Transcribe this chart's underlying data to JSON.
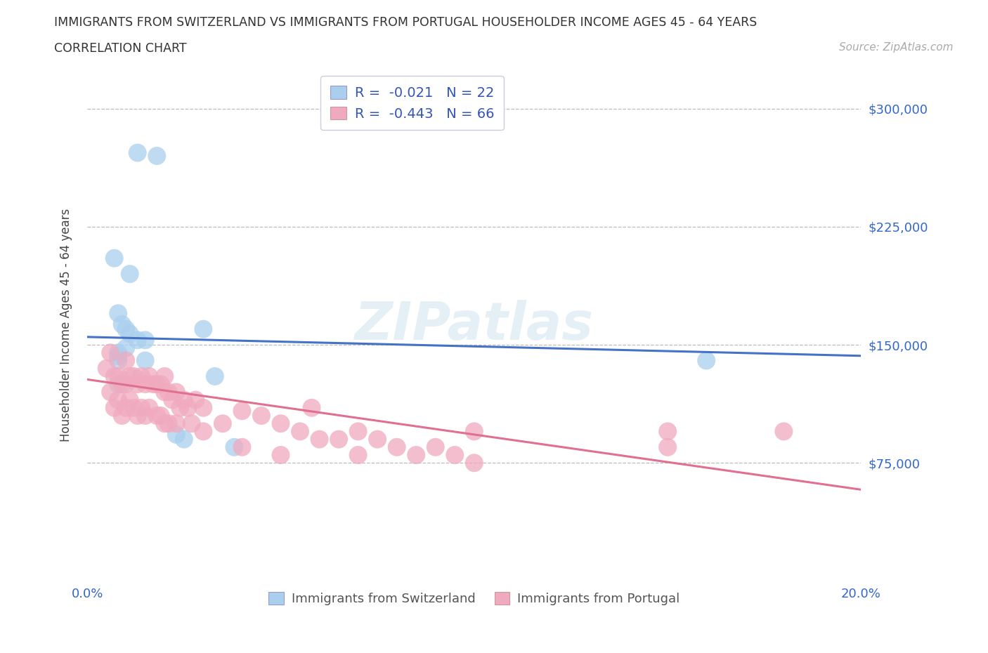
{
  "title_line1": "IMMIGRANTS FROM SWITZERLAND VS IMMIGRANTS FROM PORTUGAL HOUSEHOLDER INCOME AGES 45 - 64 YEARS",
  "title_line2": "CORRELATION CHART",
  "source_text": "Source: ZipAtlas.com",
  "ylabel": "Householder Income Ages 45 - 64 years",
  "xlim": [
    0.0,
    0.2
  ],
  "ylim": [
    0,
    325000
  ],
  "gridline_y": [
    75000,
    150000,
    225000,
    300000
  ],
  "r_swiss": -0.021,
  "n_swiss": 22,
  "r_portugal": -0.443,
  "n_portugal": 66,
  "swiss_color": "#aacfee",
  "portugal_color": "#f0aabf",
  "swiss_line_color": "#4472c4",
  "portugal_line_color": "#e07090",
  "legend_text_color": "#3355bb",
  "swiss_x": [
    0.013,
    0.018,
    0.007,
    0.011,
    0.008,
    0.009,
    0.01,
    0.011,
    0.013,
    0.015,
    0.03,
    0.01,
    0.008,
    0.008,
    0.008,
    0.015,
    0.033,
    0.008,
    0.16,
    0.023,
    0.025,
    0.038
  ],
  "swiss_y": [
    272000,
    270000,
    205000,
    195000,
    170000,
    163000,
    160000,
    157000,
    153000,
    153000,
    160000,
    148000,
    145000,
    143000,
    140000,
    140000,
    130000,
    125000,
    140000,
    93000,
    90000,
    85000
  ],
  "portugal_x": [
    0.005,
    0.006,
    0.006,
    0.007,
    0.007,
    0.008,
    0.008,
    0.009,
    0.009,
    0.01,
    0.01,
    0.01,
    0.011,
    0.011,
    0.012,
    0.012,
    0.013,
    0.013,
    0.014,
    0.014,
    0.015,
    0.015,
    0.016,
    0.016,
    0.017,
    0.018,
    0.018,
    0.019,
    0.019,
    0.02,
    0.02,
    0.02,
    0.021,
    0.021,
    0.022,
    0.023,
    0.023,
    0.024,
    0.025,
    0.026,
    0.027,
    0.028,
    0.03,
    0.03,
    0.035,
    0.04,
    0.04,
    0.045,
    0.05,
    0.05,
    0.055,
    0.058,
    0.06,
    0.065,
    0.07,
    0.07,
    0.075,
    0.08,
    0.085,
    0.09,
    0.095,
    0.1,
    0.1,
    0.15,
    0.15,
    0.18
  ],
  "portugal_y": [
    135000,
    145000,
    120000,
    130000,
    110000,
    130000,
    115000,
    125000,
    105000,
    140000,
    125000,
    110000,
    130000,
    115000,
    130000,
    110000,
    125000,
    105000,
    130000,
    110000,
    125000,
    105000,
    130000,
    110000,
    125000,
    125000,
    105000,
    125000,
    105000,
    130000,
    120000,
    100000,
    120000,
    100000,
    115000,
    120000,
    100000,
    110000,
    115000,
    110000,
    100000,
    115000,
    110000,
    95000,
    100000,
    108000,
    85000,
    105000,
    100000,
    80000,
    95000,
    110000,
    90000,
    90000,
    95000,
    80000,
    90000,
    85000,
    80000,
    85000,
    80000,
    95000,
    75000,
    95000,
    85000,
    95000
  ],
  "swiss_line_x0": 0.0,
  "swiss_line_y0": 155000,
  "swiss_line_x1": 0.2,
  "swiss_line_y1": 143000,
  "port_line_x0": 0.0,
  "port_line_y0": 128000,
  "port_line_x1": 0.2,
  "port_line_y1": 58000
}
